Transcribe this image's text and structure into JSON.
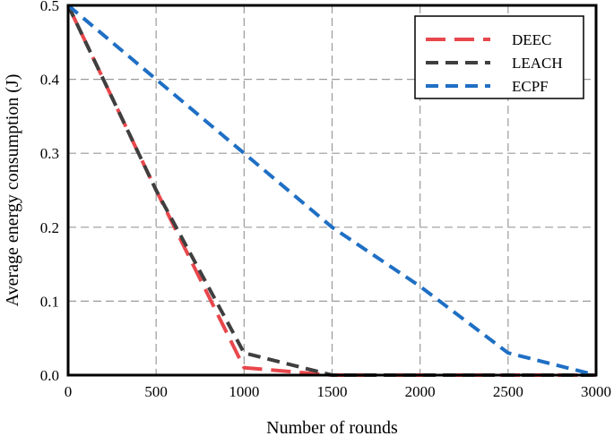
{
  "chart_data": {
    "type": "line",
    "xlabel": "Number of rounds",
    "ylabel": "Average energy consumption (J)",
    "xlim": [
      0,
      3000
    ],
    "ylim": [
      0,
      0.5
    ],
    "xticks": [
      0,
      500,
      1000,
      1500,
      2000,
      2500,
      3000
    ],
    "xtick_labels": [
      "0",
      "500",
      "1000",
      "1500",
      "2000",
      "2500",
      "3000"
    ],
    "yticks": [
      0,
      0.1,
      0.2,
      0.3,
      0.4,
      0.5
    ],
    "ytick_labels": [
      "0.0",
      "0.1",
      "0.2",
      "0.3",
      "0.4",
      "0.5"
    ],
    "grid": true,
    "legend_position": "top-right",
    "series": [
      {
        "name": "DEEC",
        "color": "#e8474c",
        "dash": "long-dash",
        "x": [
          0,
          500,
          1000,
          1500,
          2000,
          2500,
          3000
        ],
        "y": [
          0.5,
          0.25,
          0.01,
          0.0,
          0.0,
          0.0,
          0.0
        ]
      },
      {
        "name": "LEACH",
        "color": "#3f3f3f",
        "dash": "dash",
        "x": [
          0,
          500,
          1000,
          1500,
          2000,
          2500,
          3000
        ],
        "y": [
          0.5,
          0.25,
          0.03,
          0.0,
          0.0,
          0.0,
          0.0
        ]
      },
      {
        "name": "ECPF",
        "color": "#1f6fc4",
        "dash": "dash",
        "x": [
          0,
          500,
          1000,
          1500,
          2000,
          2500,
          3000
        ],
        "y": [
          0.5,
          0.4,
          0.3,
          0.2,
          0.12,
          0.03,
          0.0
        ]
      }
    ]
  }
}
